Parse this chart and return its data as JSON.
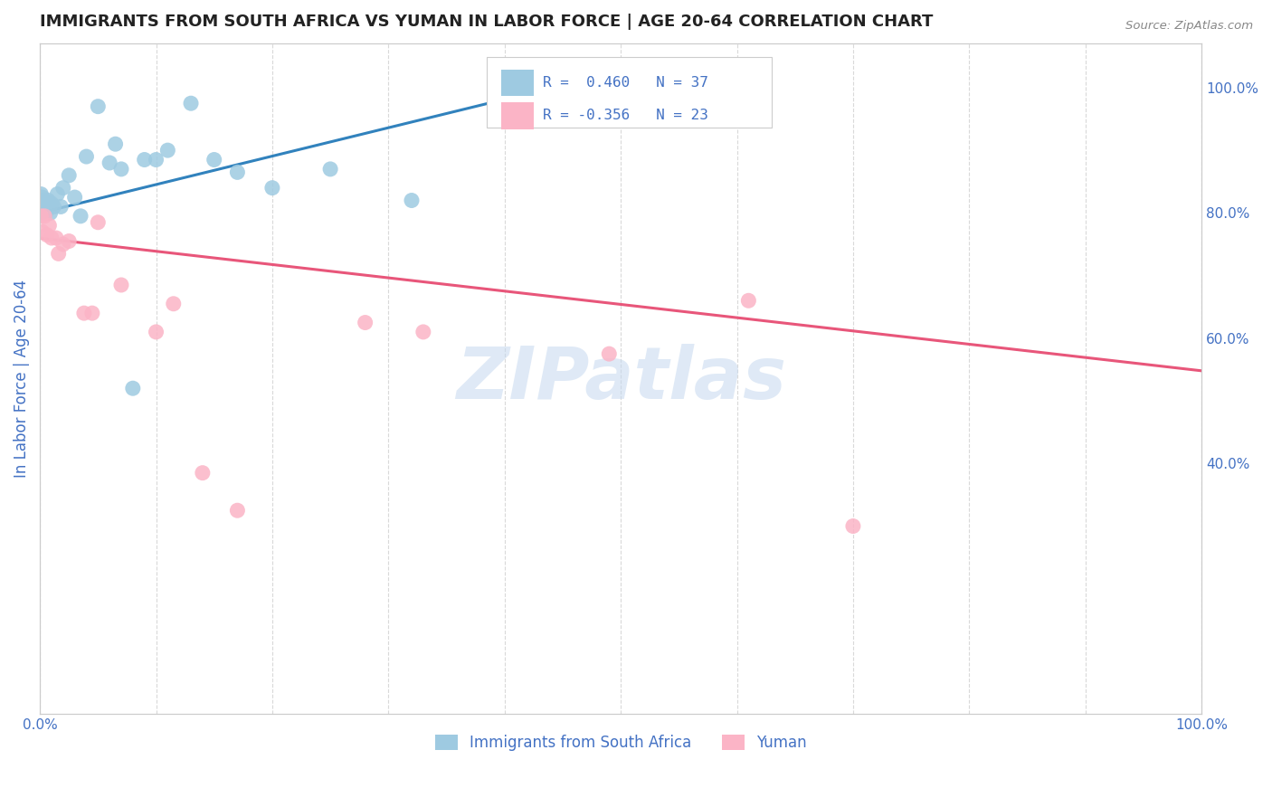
{
  "title": "IMMIGRANTS FROM SOUTH AFRICA VS YUMAN IN LABOR FORCE | AGE 20-64 CORRELATION CHART",
  "source": "Source: ZipAtlas.com",
  "ylabel": "In Labor Force | Age 20-64",
  "xlim": [
    0.0,
    1.0
  ],
  "ylim": [
    0.0,
    1.07
  ],
  "y_ticks_right": [
    0.4,
    0.6,
    0.8,
    1.0
  ],
  "y_tick_labels_right": [
    "40.0%",
    "60.0%",
    "80.0%",
    "100.0%"
  ],
  "legend_R1": "R =  0.460",
  "legend_N1": "N = 37",
  "legend_R2": "R = -0.356",
  "legend_N2": "N = 23",
  "color_blue": "#9ecae1",
  "color_pink": "#fbb4c6",
  "line_blue": "#3182bd",
  "line_pink": "#e8567a",
  "watermark": "ZIPatlas",
  "blue_points_x": [
    0.001,
    0.001,
    0.002,
    0.002,
    0.003,
    0.003,
    0.004,
    0.004,
    0.005,
    0.005,
    0.006,
    0.007,
    0.008,
    0.009,
    0.01,
    0.012,
    0.015,
    0.018,
    0.02,
    0.025,
    0.03,
    0.035,
    0.04,
    0.05,
    0.06,
    0.065,
    0.07,
    0.08,
    0.09,
    0.1,
    0.11,
    0.13,
    0.15,
    0.17,
    0.2,
    0.25,
    0.32
  ],
  "blue_points_y": [
    0.82,
    0.83,
    0.81,
    0.825,
    0.815,
    0.82,
    0.8,
    0.815,
    0.81,
    0.8,
    0.815,
    0.82,
    0.81,
    0.8,
    0.815,
    0.81,
    0.83,
    0.81,
    0.84,
    0.86,
    0.825,
    0.795,
    0.89,
    0.97,
    0.88,
    0.91,
    0.87,
    0.52,
    0.885,
    0.885,
    0.9,
    0.975,
    0.885,
    0.865,
    0.84,
    0.87,
    0.82
  ],
  "pink_points_x": [
    0.001,
    0.002,
    0.004,
    0.006,
    0.008,
    0.01,
    0.014,
    0.016,
    0.02,
    0.025,
    0.038,
    0.045,
    0.05,
    0.07,
    0.1,
    0.115,
    0.14,
    0.17,
    0.28,
    0.33,
    0.49,
    0.61,
    0.7
  ],
  "pink_points_y": [
    0.795,
    0.77,
    0.795,
    0.765,
    0.78,
    0.76,
    0.76,
    0.735,
    0.75,
    0.755,
    0.64,
    0.64,
    0.785,
    0.685,
    0.61,
    0.655,
    0.385,
    0.325,
    0.625,
    0.61,
    0.575,
    0.66,
    0.3
  ],
  "blue_line_x": [
    0.0,
    0.43
  ],
  "blue_line_y": [
    0.8,
    0.995
  ],
  "pink_line_x": [
    0.0,
    1.0
  ],
  "pink_line_y": [
    0.76,
    0.548
  ],
  "background_color": "#ffffff",
  "grid_color": "#d9d9d9",
  "title_color": "#222222",
  "axis_label_color": "#4472c4",
  "source_color": "#888888",
  "watermark_color": "#c5d8ef",
  "watermark_alpha": 0.55
}
